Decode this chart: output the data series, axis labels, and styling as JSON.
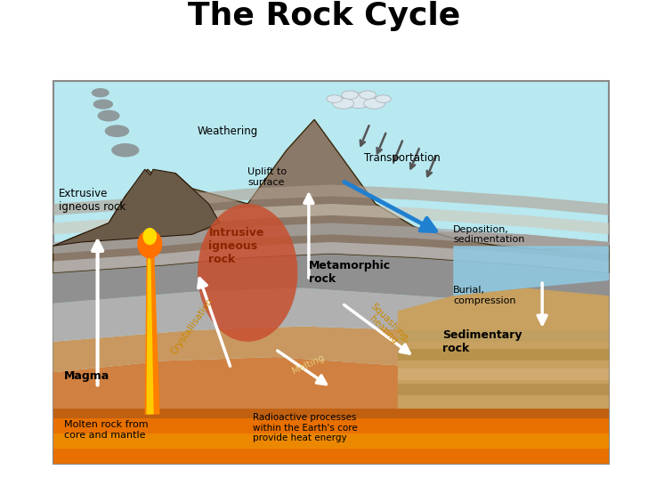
{
  "title": "The Rock Cycle",
  "title_fontsize": 26,
  "title_fontweight": "bold",
  "sky_color": "#b8e8f0",
  "bottom_lava_color": "#e87000",
  "bottom_lava2": "#f0a000",
  "rock_dark": "#8a7868",
  "rock_mid": "#a09080",
  "rock_light": "#b8a898",
  "rock_grey1": "#909090",
  "rock_grey2": "#787878",
  "rock_grey3": "#a0a0a0",
  "rock_brown1": "#c8a060",
  "rock_brown2": "#b89050",
  "rock_orange": "#d08040",
  "intrusive_color": "#c85030",
  "sea_color": "#90c8d8",
  "smoke_color": "#888888",
  "labels": {
    "extrusive": "Extrusive\nigneous rock",
    "intrusive": "Intrusive\nigneous\nrock",
    "metamorphic": "Metamorphic\nrock",
    "sedimentary": "Sedimentary\nrock",
    "magma": "Magma",
    "molten": "Molten rock from\ncore and mantle",
    "weathering": "Weathering",
    "uplift": "Uplift to\nsurface",
    "transportation": "Transportation",
    "deposition": "Deposition,\nsedimentation",
    "burial": "Burial,\ncompression",
    "radioactive": "Radioactive processes\nwithin the Earth's core\nprovide heat energy",
    "crystallisation": "Crystallisation",
    "melting": "Melting",
    "squashing": "Squashing,\nheating"
  }
}
